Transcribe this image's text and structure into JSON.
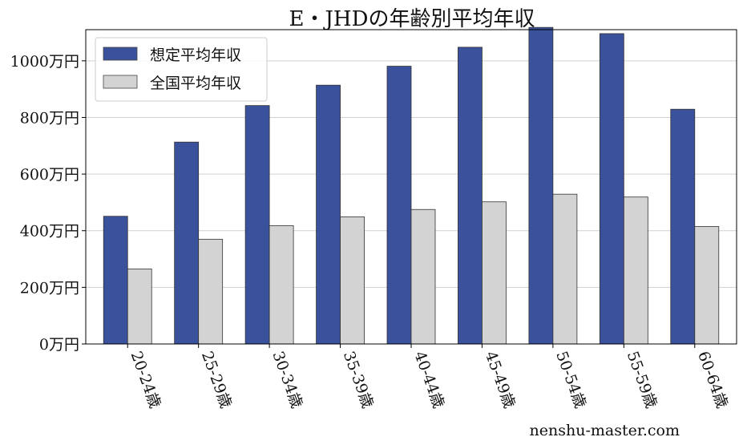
{
  "chart_data": {
    "type": "bar",
    "title": "E・JHDの年齢別平均年収",
    "categories": [
      "20-24歳",
      "25-29歳",
      "30-34歳",
      "35-39歳",
      "40-44歳",
      "45-49歳",
      "50-54歳",
      "55-59歳",
      "60-64歳"
    ],
    "series": [
      {
        "name": "想定平均年収",
        "color": "#3a519b",
        "values": [
          451,
          713,
          842,
          914,
          981,
          1048,
          1118,
          1096,
          829
        ]
      },
      {
        "name": "全国平均年収",
        "color": "#d3d3d3",
        "values": [
          265,
          370,
          418,
          449,
          475,
          502,
          529,
          519,
          415
        ]
      }
    ],
    "ylim": [
      0,
      1110
    ],
    "yticks": [
      0,
      200,
      400,
      600,
      800,
      1000
    ],
    "ytick_labels": [
      "0万円",
      "200万円",
      "400万円",
      "600万円",
      "800万円",
      "1000万円"
    ],
    "grid": "horizontal",
    "legend_position": "top-left",
    "xlabel": "",
    "ylabel": ""
  },
  "watermark": "nenshu-master.com"
}
